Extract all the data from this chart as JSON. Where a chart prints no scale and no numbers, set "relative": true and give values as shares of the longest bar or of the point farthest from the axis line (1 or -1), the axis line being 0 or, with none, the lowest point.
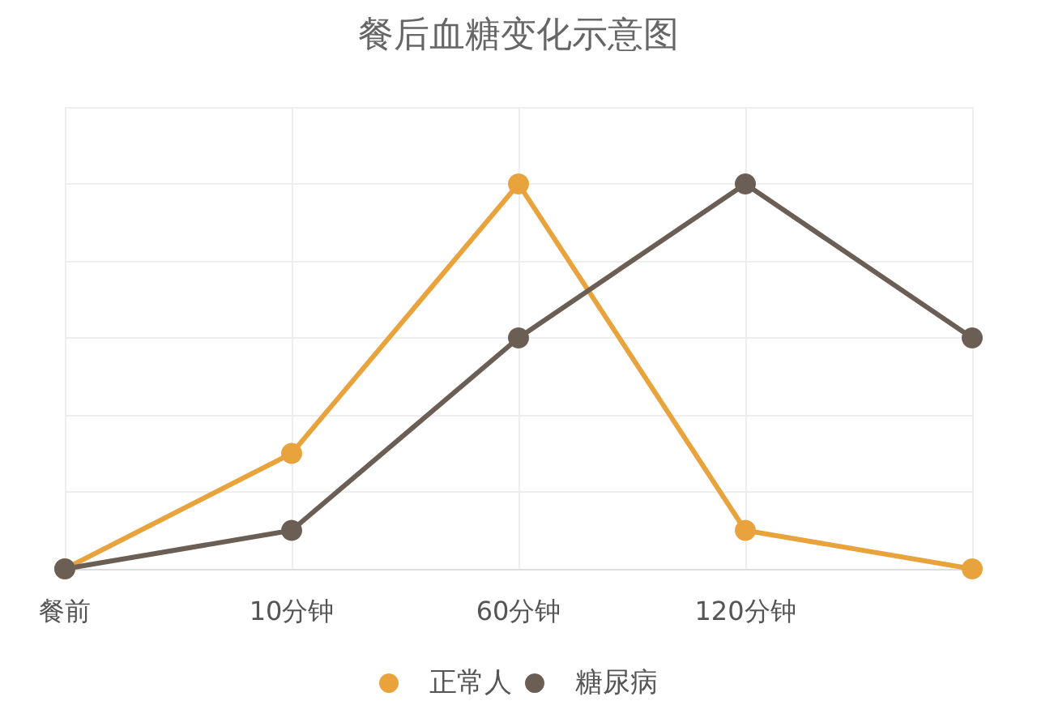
{
  "chart_data": {
    "type": "line",
    "title": "餐后血糖变化示意图",
    "categories": [
      "餐前",
      "10分钟",
      "60分钟",
      "120分钟",
      null
    ],
    "relative": true,
    "grid": true,
    "legend": "bottom",
    "marker": "circle",
    "line_style": "solid",
    "series": [
      {
        "name": "正常人",
        "color": "#e8a33d",
        "values": [
          0,
          0.3,
          1,
          0.1,
          0
        ]
      },
      {
        "name": "糖尿病",
        "color": "#6b5f55",
        "values": [
          0,
          0.1,
          0.6,
          1,
          0.6
        ]
      }
    ]
  }
}
